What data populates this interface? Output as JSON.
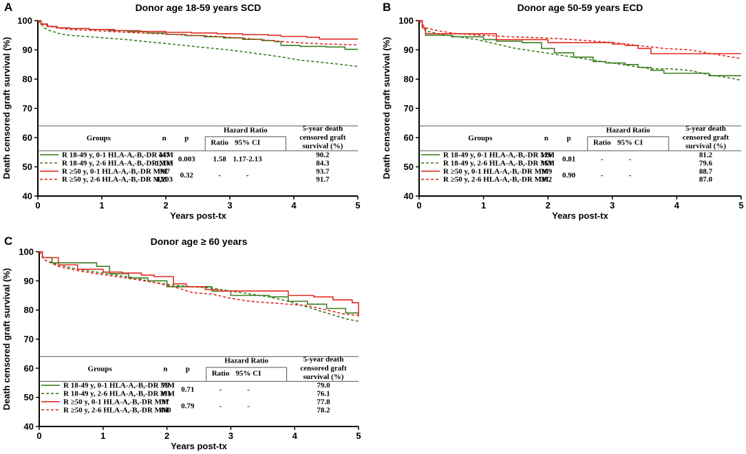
{
  "colors": {
    "green": "#3a7d1e",
    "red": "#e02a1f",
    "axis": "#000000",
    "background": "#ffffff"
  },
  "table_headers": {
    "groups": "Groups",
    "n": "n",
    "p": "p",
    "hazard_ratio": "Hazard Ratio",
    "ratio": "Ratio",
    "ci": "95% CI",
    "survival_line1": "5-year death",
    "survival_line2": "censored graft",
    "survival_line3": "survival (%)"
  },
  "chart_data": [
    {
      "panel": "A",
      "type": "line",
      "title": "Donor age 18-59 years SCD",
      "xlabel": "Years post-tx",
      "ylabel": "Death censored graft survival (%)",
      "xlim": [
        0,
        5
      ],
      "ylim": [
        40,
        100
      ],
      "xticks": [
        0,
        1,
        2,
        3,
        4,
        5
      ],
      "yticks": [
        40,
        50,
        60,
        70,
        80,
        90,
        100
      ],
      "series": [
        {
          "name": "R 18-49 y, 0-1 HLA-A,-B,-DR MM",
          "color": "green",
          "dash": false,
          "step": true,
          "x": [
            0,
            0.05,
            0.15,
            0.3,
            0.5,
            0.8,
            1.1,
            1.4,
            1.7,
            2.0,
            2.3,
            2.6,
            2.9,
            3.2,
            3.5,
            3.7,
            3.8,
            4.1,
            4.5,
            4.8,
            5.0
          ],
          "y": [
            100,
            98.8,
            98.0,
            97.5,
            97.3,
            97.0,
            96.6,
            96.2,
            95.8,
            95.3,
            94.9,
            94.5,
            94.1,
            93.6,
            93.2,
            92.8,
            91.5,
            91.2,
            91.0,
            90.2,
            90.2
          ]
        },
        {
          "name": "R 18-49 y, 2-6 HLA-A,-B,-DR MM",
          "color": "green",
          "dash": true,
          "step": false,
          "x": [
            0,
            0.1,
            0.2,
            0.35,
            0.5,
            0.8,
            1.1,
            1.4,
            1.7,
            2.0,
            2.3,
            2.6,
            2.9,
            3.2,
            3.5,
            3.8,
            4.1,
            4.4,
            4.7,
            5.0
          ],
          "y": [
            100,
            97.5,
            96.5,
            95.5,
            95.0,
            94.5,
            94.0,
            93.5,
            92.8,
            92.2,
            91.5,
            90.8,
            90.2,
            89.4,
            88.5,
            87.6,
            86.5,
            85.8,
            85.1,
            84.3
          ]
        },
        {
          "name": "R ≥50 y, 0-1 HLA-A,-B,-DR MM",
          "color": "red",
          "dash": false,
          "step": true,
          "x": [
            0,
            0.05,
            0.15,
            0.3,
            0.5,
            0.8,
            1.2,
            1.6,
            2.0,
            2.4,
            2.8,
            3.2,
            3.6,
            3.8,
            4.0,
            4.2,
            4.4,
            5.0
          ],
          "y": [
            100,
            98.8,
            98.0,
            97.5,
            97.3,
            97.0,
            96.6,
            96.3,
            96.0,
            95.8,
            95.5,
            95.2,
            95.0,
            94.6,
            94.6,
            94.3,
            93.7,
            93.7
          ]
        },
        {
          "name": "R ≥50 y, 2-6 HLA-A,-B,-DR MM",
          "color": "red",
          "dash": true,
          "step": false,
          "x": [
            0,
            0.1,
            0.3,
            0.5,
            0.8,
            1.2,
            1.6,
            2.0,
            2.4,
            2.8,
            3.2,
            3.6,
            3.9,
            4.2,
            4.5,
            5.0
          ],
          "y": [
            100,
            98.5,
            97.5,
            97.0,
            96.7,
            96.2,
            95.8,
            95.4,
            95.0,
            94.6,
            94.0,
            93.3,
            92.7,
            92.3,
            92.0,
            91.7
          ]
        }
      ],
      "table": [
        {
          "group": "R 18-49 y, 0-1 HLA-A,-B,-DR MM",
          "n": "447",
          "p": "0.003",
          "ratio": "1.58",
          "ci": "1.17-2.13",
          "survival": "90.2"
        },
        {
          "group": "R 18-49 y, 2-6 HLA-A,-B,-DR MM",
          "n": "1,333",
          "p": "",
          "ratio": "",
          "ci": "",
          "survival": "84.3"
        },
        {
          "group": "R ≥50 y, 0-1 HLA-A,-B,-DR MM",
          "n": "367",
          "p": "0.32",
          "ratio": "-",
          "ci": "-",
          "survival": "93.7"
        },
        {
          "group": "R ≥50 y, 2-6 HLA-A,-B,-DR MM",
          "n": "1,203",
          "p": "",
          "ratio": "",
          "ci": "",
          "survival": "91.7"
        }
      ]
    },
    {
      "panel": "B",
      "type": "line",
      "title": "Donor age 50-59 years ECD",
      "xlabel": "Years post-tx",
      "ylabel": "Death censored graft survival (%)",
      "xlim": [
        0,
        5
      ],
      "ylim": [
        40,
        100
      ],
      "xticks": [
        0,
        1,
        2,
        3,
        4,
        5
      ],
      "yticks": [
        40,
        50,
        60,
        70,
        80,
        90,
        100
      ],
      "series": [
        {
          "name": "R 18-49 y, 0-1 HLA-A,-B,-DR MM",
          "color": "green",
          "dash": false,
          "step": true,
          "x": [
            0,
            0.05,
            0.1,
            0.5,
            1.0,
            1.2,
            1.6,
            1.9,
            2.1,
            2.4,
            2.7,
            2.9,
            3.2,
            3.4,
            3.6,
            3.8,
            4.2,
            4.5,
            5.0
          ],
          "y": [
            100,
            97.5,
            95.0,
            94.5,
            93.5,
            93.0,
            92.5,
            90.5,
            89.0,
            87.5,
            86.0,
            85.5,
            85.0,
            84.0,
            83.0,
            82.0,
            82.0,
            81.2,
            81.2
          ]
        },
        {
          "name": "R 18-49 y, 2-6 HLA-A,-B,-DR MM",
          "color": "green",
          "dash": true,
          "step": false,
          "x": [
            0,
            0.1,
            0.3,
            0.6,
            0.9,
            1.2,
            1.5,
            1.8,
            2.1,
            2.4,
            2.7,
            3.0,
            3.3,
            3.6,
            3.9,
            4.2,
            4.5,
            4.8,
            5.0
          ],
          "y": [
            100,
            96.5,
            95.5,
            94.5,
            93.5,
            92.0,
            90.5,
            89.5,
            88.5,
            87.5,
            86.5,
            85.5,
            84.5,
            83.5,
            83.5,
            83.0,
            81.5,
            80.5,
            79.6
          ]
        },
        {
          "name": "R ≥50 y, 0-1 HLA-A,-B,-DR MM",
          "color": "red",
          "dash": false,
          "step": true,
          "x": [
            0,
            0.05,
            0.1,
            1.0,
            1.2,
            2.0,
            2.6,
            3.0,
            3.2,
            3.4,
            3.6,
            4.0,
            4.5,
            5.0
          ],
          "y": [
            100,
            97.5,
            95.5,
            95.5,
            93.5,
            92.5,
            92.5,
            92.0,
            91.5,
            90.5,
            88.7,
            88.7,
            88.7,
            88.7
          ]
        },
        {
          "name": "R ≥50 y, 2-6 HLA-A,-B,-DR MM",
          "color": "red",
          "dash": true,
          "step": false,
          "x": [
            0,
            0.1,
            0.3,
            0.6,
            1.0,
            1.4,
            1.8,
            2.2,
            2.6,
            3.0,
            3.4,
            3.8,
            4.2,
            4.6,
            5.0
          ],
          "y": [
            100,
            97.5,
            96.5,
            95.5,
            95.0,
            94.5,
            94.2,
            93.8,
            93.2,
            92.5,
            91.5,
            90.5,
            90.0,
            88.5,
            87.0
          ]
        }
      ],
      "table": [
        {
          "group": "R 18-49 y, 0-1 HLA-A,-B,-DR MM",
          "n": "126",
          "p": "0.81",
          "ratio": "-",
          "ci": "-",
          "survival": "81.2"
        },
        {
          "group": "R 18-49 y, 2-6 HLA-A,-B,-DR MM",
          "n": "353",
          "p": "",
          "ratio": "",
          "ci": "",
          "survival": "79.6"
        },
        {
          "group": "R ≥50 y, 0-1 HLA-A,-B,-DR MM",
          "n": "109",
          "p": "0.90",
          "ratio": "-",
          "ci": "-",
          "survival": "88.7"
        },
        {
          "group": "R ≥50 y, 2-6 HLA-A,-B,-DR MM",
          "n": "392",
          "p": "",
          "ratio": "",
          "ci": "",
          "survival": "87.0"
        }
      ]
    },
    {
      "panel": "C",
      "type": "line",
      "title": "Donor age ≥ 60 years",
      "xlabel": "Years post-tx",
      "ylabel": "Death censored graft survival (%)",
      "xlim": [
        0,
        5
      ],
      "ylim": [
        40,
        100
      ],
      "xticks": [
        0,
        1,
        2,
        3,
        4,
        5
      ],
      "yticks": [
        40,
        50,
        60,
        70,
        80,
        90,
        100
      ],
      "series": [
        {
          "name": "R 18-49 y, 0-1 HLA-A,-B,-DR MM",
          "color": "green",
          "dash": false,
          "step": true,
          "x": [
            0,
            0.05,
            0.2,
            0.7,
            0.9,
            1.1,
            1.4,
            1.7,
            2.0,
            2.4,
            2.7,
            3.0,
            3.3,
            3.6,
            3.9,
            4.2,
            4.5,
            4.8,
            5.0
          ],
          "y": [
            100,
            98.0,
            96.2,
            96.2,
            95.0,
            92.5,
            91.0,
            90.0,
            88.0,
            88.0,
            86.5,
            85.0,
            85.0,
            84.5,
            83.0,
            82.0,
            80.5,
            79.0,
            79.0
          ]
        },
        {
          "name": "R 18-49 y, 2-6 HLA-A,-B,-DR MM",
          "color": "green",
          "dash": true,
          "step": false,
          "x": [
            0,
            0.1,
            0.3,
            0.6,
            0.9,
            1.2,
            1.5,
            1.8,
            2.1,
            2.4,
            2.7,
            3.0,
            3.3,
            3.6,
            3.9,
            4.2,
            4.5,
            4.8,
            5.0
          ],
          "y": [
            100,
            97.0,
            95.5,
            94.0,
            93.0,
            92.0,
            91.0,
            89.5,
            88.5,
            88.0,
            87.5,
            86.5,
            85.5,
            84.5,
            83.0,
            81.0,
            79.0,
            77.0,
            76.1
          ]
        },
        {
          "name": "R ≥50 y, 0-1 HLA-A,-B,-DR MM",
          "color": "red",
          "dash": false,
          "step": true,
          "x": [
            0,
            0.05,
            0.3,
            0.6,
            1.0,
            1.3,
            1.6,
            1.8,
            2.0,
            2.1,
            2.3,
            2.6,
            2.8,
            3.0,
            3.3,
            3.6,
            3.9,
            4.3,
            4.6,
            4.9,
            5.0
          ],
          "y": [
            100,
            98.0,
            95.5,
            94.0,
            93.0,
            92.7,
            92.0,
            91.5,
            91.5,
            89.0,
            88.0,
            87.0,
            86.5,
            86.5,
            86.5,
            86.5,
            85.0,
            84.5,
            83.5,
            82.5,
            77.8
          ]
        },
        {
          "name": "R ≥50 y, 2-6 HLA-A,-B,-DR MM",
          "color": "red",
          "dash": true,
          "step": false,
          "x": [
            0,
            0.1,
            0.3,
            0.6,
            0.9,
            1.2,
            1.5,
            1.8,
            2.1,
            2.4,
            2.7,
            3.0,
            3.3,
            3.6,
            3.9,
            4.2,
            4.5,
            4.8,
            5.0
          ],
          "y": [
            100,
            97.0,
            95.0,
            93.5,
            92.5,
            91.5,
            90.5,
            89.5,
            88.0,
            86.0,
            85.5,
            84.0,
            83.0,
            82.5,
            82.0,
            81.5,
            80.0,
            78.5,
            78.2
          ]
        }
      ],
      "table": [
        {
          "group": "R 18-49 y, 0-1 HLA-A,-B,-DR MM",
          "n": "79",
          "p": "0.71",
          "ratio": "-",
          "ci": "-",
          "survival": "79.0"
        },
        {
          "group": "R 18-49 y, 2-6 HLA-A,-B,-DR MM",
          "n": "391",
          "p": "",
          "ratio": "",
          "ci": "",
          "survival": "76.1"
        },
        {
          "group": "R ≥50 y, 0-1 HLA-A,-B,-DR MM",
          "n": "97",
          "p": "0.79",
          "ratio": "-",
          "ci": "-",
          "survival": "77.8"
        },
        {
          "group": "R ≥50 y, 2-6 HLA-A,-B,-DR MM",
          "n": "460",
          "p": "",
          "ratio": "",
          "ci": "",
          "survival": "78.2"
        }
      ]
    }
  ]
}
